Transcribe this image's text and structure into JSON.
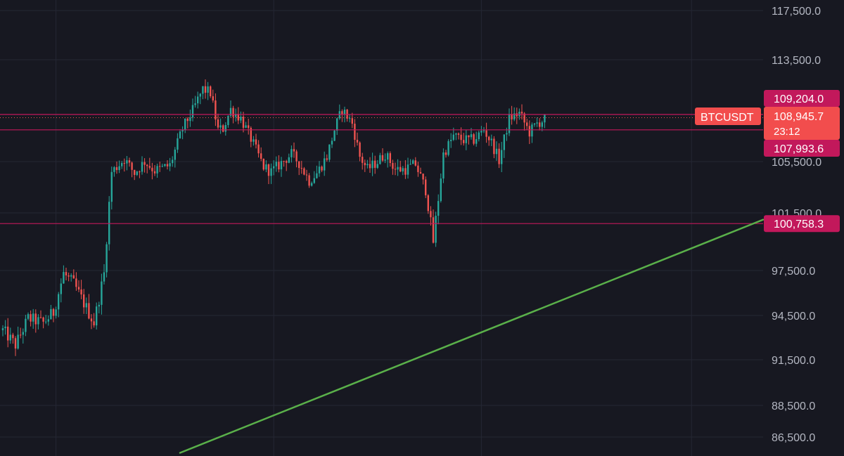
{
  "chart_data": {
    "type": "candlestick",
    "symbol": "BTCUSDT",
    "y_axis": {
      "position": "right",
      "range": [
        85500,
        119000
      ],
      "ticks": [
        {
          "value": 117500,
          "label": "117,500.0"
        },
        {
          "value": 113500,
          "label": "113,500.0"
        },
        {
          "value": 105500,
          "label": "105,500.0"
        },
        {
          "value": 101500,
          "label": "101,500.0"
        },
        {
          "value": 97500,
          "label": "97,500.0"
        },
        {
          "value": 94500,
          "label": "94,500.0"
        },
        {
          "value": 91500,
          "label": "91,500.0"
        },
        {
          "value": 88500,
          "label": "88,500.0"
        },
        {
          "value": 86500,
          "label": "86,500.0"
        }
      ]
    },
    "x_axis": {
      "start_index": 0,
      "end_index": 260,
      "gridlines_at_index": [
        21,
        107,
        189,
        272
      ]
    },
    "grid": true,
    "horizontal_levels": [
      {
        "value": 109204.0,
        "label": "109,204.0",
        "color": "#c2185b"
      },
      {
        "value": 107993.6,
        "label": "107,993.6",
        "color": "#c2185b"
      },
      {
        "value": 100758.3,
        "label": "100,758.3",
        "color": "#c2185b"
      }
    ],
    "current_price": {
      "value": 108945.7,
      "label": "108,945.7",
      "symbol_tag": "BTCUSDT",
      "countdown": "23:12",
      "color": "#f24d4d"
    },
    "trendline": {
      "color": "#5ab04a",
      "points": [
        {
          "x": 70,
          "y": 85500
        },
        {
          "x": 285,
          "y": 100000
        }
      ]
    },
    "colors": {
      "up": "#26a69a",
      "down": "#ef5350",
      "grid": "#252734",
      "background": "#171821"
    },
    "price_path": [
      [
        0,
        93500
      ],
      [
        5,
        92500
      ],
      [
        10,
        94300
      ],
      [
        16,
        94000
      ],
      [
        20,
        94700
      ],
      [
        24,
        97300
      ],
      [
        28,
        96600
      ],
      [
        33,
        95000
      ],
      [
        36,
        94000
      ],
      [
        40,
        97300
      ],
      [
        43,
        104700
      ],
      [
        48,
        105700
      ],
      [
        52,
        104600
      ],
      [
        56,
        105500
      ],
      [
        60,
        104800
      ],
      [
        66,
        105200
      ],
      [
        71,
        108100
      ],
      [
        75,
        109500
      ],
      [
        79,
        111200
      ],
      [
        82,
        110900
      ],
      [
        85,
        108000
      ],
      [
        87,
        108100
      ],
      [
        90,
        109600
      ],
      [
        94,
        108900
      ],
      [
        98,
        107300
      ],
      [
        103,
        105100
      ],
      [
        106,
        104700
      ],
      [
        110,
        105400
      ],
      [
        114,
        106100
      ],
      [
        117,
        105400
      ],
      [
        121,
        104000
      ],
      [
        124,
        104600
      ],
      [
        128,
        105900
      ],
      [
        131,
        108000
      ],
      [
        134,
        109600
      ],
      [
        138,
        108500
      ],
      [
        141,
        105900
      ],
      [
        144,
        104900
      ],
      [
        148,
        105500
      ],
      [
        151,
        106100
      ],
      [
        155,
        104900
      ],
      [
        159,
        104900
      ],
      [
        163,
        105300
      ],
      [
        167,
        103300
      ],
      [
        170,
        99500
      ],
      [
        172,
        102600
      ],
      [
        174,
        106100
      ],
      [
        178,
        107500
      ],
      [
        182,
        107200
      ],
      [
        186,
        107200
      ],
      [
        190,
        108000
      ],
      [
        193,
        107000
      ],
      [
        196,
        105600
      ],
      [
        200,
        108900
      ],
      [
        204,
        109300
      ],
      [
        208,
        107800
      ],
      [
        211,
        108500
      ],
      [
        214,
        108800
      ]
    ]
  }
}
